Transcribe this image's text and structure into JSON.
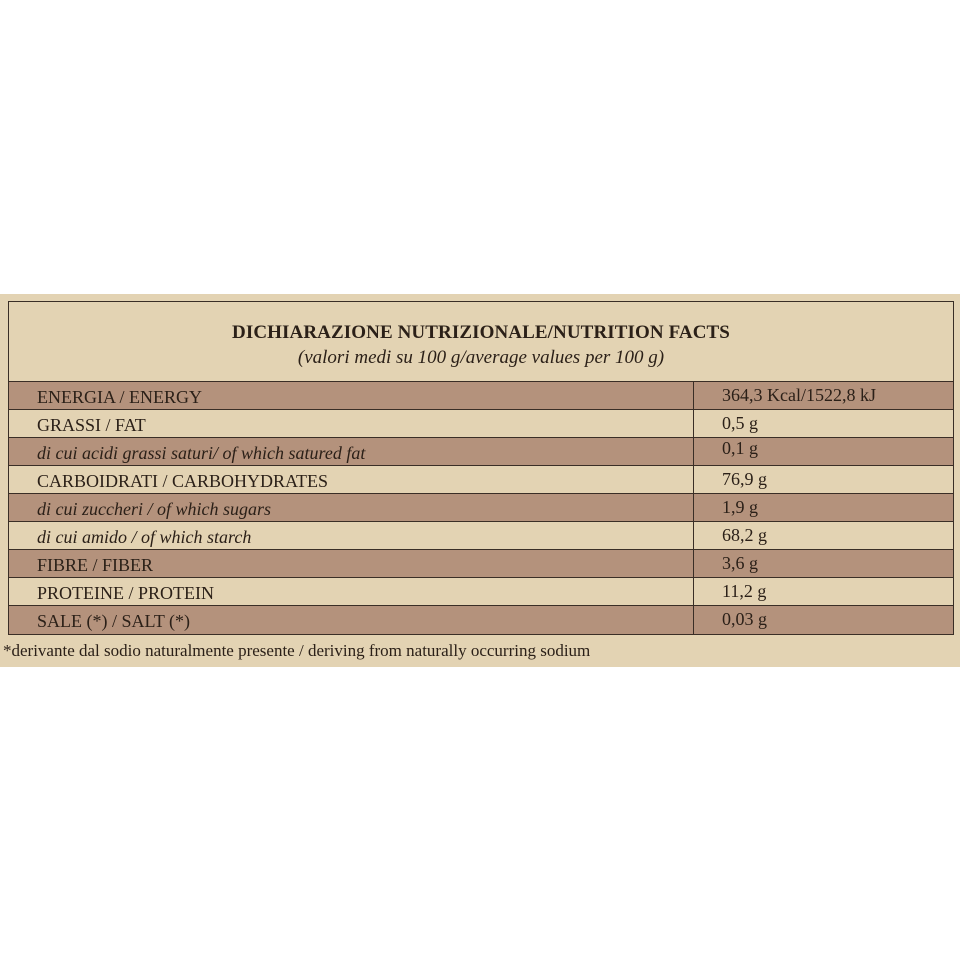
{
  "table": {
    "title": "DICHIARAZIONE NUTRIZIONALE/NUTRITION FACTS",
    "subtitle": "(valori medi su 100 g/average values per 100 g)",
    "rows": [
      {
        "label": "ENERGIA / ENERGY",
        "value": "364,3 Kcal/1522,8 kJ"
      },
      {
        "label": "GRASSI / FAT",
        "value": "0,5 g"
      },
      {
        "label": "di cui acidi grassi saturi/ of which satured fat",
        "value": "0,1 g"
      },
      {
        "label": "CARBOIDRATI / CARBOHYDRATES",
        "value": "76,9 g"
      },
      {
        "label": "di cui zuccheri / of which sugars",
        "value": "1,9 g"
      },
      {
        "label": "di cui amido / of which starch",
        "value": "68,2 g"
      },
      {
        "label": "FIBRE / FIBER",
        "value": "3,6 g"
      },
      {
        "label": "PROTEINE / PROTEIN",
        "value": "11,2 g"
      },
      {
        "label": "SALE (*) / SALT (*)",
        "value": "0,03 g"
      }
    ]
  },
  "footnote": "*derivante dal sodio naturalmente presente / deriving from naturally occurring sodium",
  "colors": {
    "background": "#e3d3b3",
    "dark_row": "#b4927c",
    "text": "#2b2018"
  }
}
